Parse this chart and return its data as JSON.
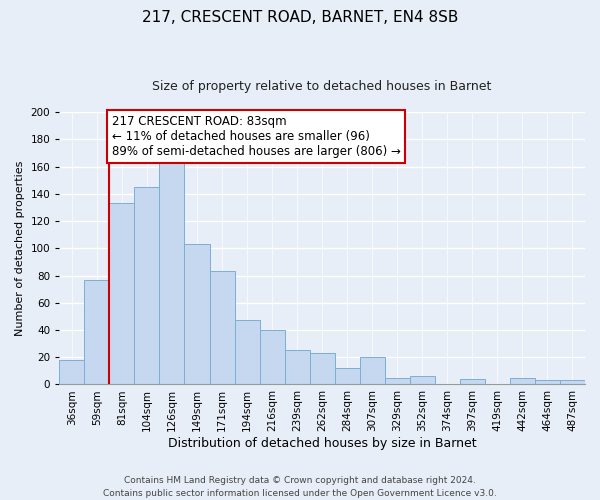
{
  "title1": "217, CRESCENT ROAD, BARNET, EN4 8SB",
  "title2": "Size of property relative to detached houses in Barnet",
  "xlabel": "Distribution of detached houses by size in Barnet",
  "ylabel": "Number of detached properties",
  "bar_labels": [
    "36sqm",
    "59sqm",
    "81sqm",
    "104sqm",
    "126sqm",
    "149sqm",
    "171sqm",
    "194sqm",
    "216sqm",
    "239sqm",
    "262sqm",
    "284sqm",
    "307sqm",
    "329sqm",
    "352sqm",
    "374sqm",
    "397sqm",
    "419sqm",
    "442sqm",
    "464sqm",
    "487sqm"
  ],
  "bar_values": [
    18,
    77,
    133,
    145,
    164,
    103,
    83,
    47,
    40,
    25,
    23,
    12,
    20,
    5,
    6,
    0,
    4,
    0,
    5,
    3,
    3
  ],
  "bar_color": "#c5d8f0",
  "bar_edge_color": "#7bafd4",
  "vline_x_index": 2,
  "vline_color": "#cc0000",
  "ylim": [
    0,
    200
  ],
  "yticks": [
    0,
    20,
    40,
    60,
    80,
    100,
    120,
    140,
    160,
    180,
    200
  ],
  "annotation_title": "217 CRESCENT ROAD: 83sqm",
  "annotation_line1": "← 11% of detached houses are smaller (96)",
  "annotation_line2": "89% of semi-detached houses are larger (806) →",
  "annotation_box_color": "#ffffff",
  "annotation_box_edge": "#cc0000",
  "footer1": "Contains HM Land Registry data © Crown copyright and database right 2024.",
  "footer2": "Contains public sector information licensed under the Open Government Licence v3.0.",
  "title1_fontsize": 11,
  "title2_fontsize": 9,
  "xlabel_fontsize": 9,
  "ylabel_fontsize": 8,
  "tick_fontsize": 7.5,
  "annotation_fontsize": 8.5,
  "footer_fontsize": 6.5,
  "background_color": "#e8eef7",
  "grid_color": "#ffffff"
}
